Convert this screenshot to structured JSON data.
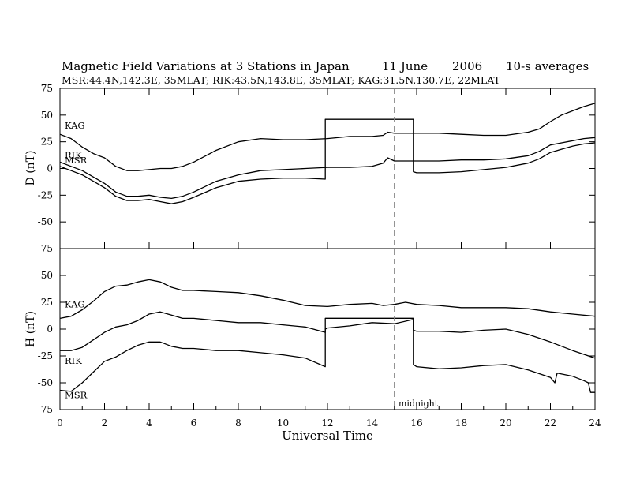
{
  "title": {
    "main": "Magnetic Field Variations at 3 Stations in Japan",
    "date": "11 June",
    "year": "2006",
    "averaging": "10-s averages"
  },
  "subtitle": "MSR:44.4N,142.3E, 35MLAT;   RIK:43.5N,143.8E, 35MLAT;   KAG:31.5N,130.7E, 22MLAT",
  "chart_data": {
    "type": "line",
    "title": "Magnetic Field Variations at 3 Stations in Japan",
    "xlabel": "Universal Time",
    "xlim": [
      0,
      24
    ],
    "xticks": [
      "0",
      "2",
      "4",
      "6",
      "8",
      "10",
      "12",
      "14",
      "16",
      "18",
      "20",
      "22",
      "24"
    ],
    "grid": false,
    "legend": "none (series labelled inline)",
    "annotations": [
      {
        "text": "midnight",
        "x": 15,
        "style": "dashed vertical line"
      }
    ],
    "panels": [
      {
        "ylabel": "D (nT)",
        "ylim": [
          -75,
          75
        ],
        "yticks": [
          "75",
          "50",
          "25",
          "0",
          "-25",
          "-50",
          "-75"
        ],
        "series": [
          {
            "name": "KAG",
            "x": [
              0,
              0.5,
              1,
              1.5,
              2,
              2.5,
              3,
              3.5,
              4,
              4.5,
              5,
              5.5,
              6,
              7,
              8,
              9,
              10,
              11,
              12,
              13,
              14,
              14.5,
              14.7,
              15,
              16,
              17,
              18,
              19,
              20,
              21,
              21.5,
              22,
              22.5,
              23,
              23.5,
              24
            ],
            "y": [
              32,
              28,
              20,
              14,
              10,
              2,
              -2,
              -2,
              -1,
              0,
              0,
              2,
              6,
              17,
              25,
              28,
              27,
              27,
              28,
              30,
              30,
              31,
              34,
              33,
              33,
              33,
              32,
              31,
              31,
              34,
              37,
              44,
              50,
              54,
              58,
              61
            ]
          },
          {
            "name": "RIK",
            "x": [
              0,
              0.5,
              1,
              1.5,
              2,
              2.5,
              3,
              3.5,
              4,
              4.5,
              5,
              5.5,
              6,
              7,
              8,
              9,
              10,
              11,
              12,
              13,
              14,
              14.5,
              14.7,
              15,
              16,
              17,
              18,
              19,
              20,
              21,
              21.5,
              22,
              22.5,
              23,
              23.5,
              24
            ],
            "y": [
              6,
              2,
              -2,
              -8,
              -14,
              -22,
              -26,
              -26,
              -25,
              -27,
              -28,
              -26,
              -22,
              -12,
              -6,
              -2,
              -1,
              0,
              1,
              1,
              2,
              5,
              10,
              7,
              7,
              7,
              8,
              8,
              9,
              12,
              16,
              22,
              24,
              26,
              28,
              29
            ]
          },
          {
            "name": "MSR",
            "x": [
              0,
              0.5,
              1,
              1.5,
              2,
              2.5,
              3,
              3.5,
              4,
              4.5,
              5,
              5.5,
              6,
              7,
              8,
              9,
              10,
              11,
              11.9,
              11.9,
              15.85,
              15.85,
              16,
              17,
              18,
              19,
              20,
              21,
              21.5,
              22,
              22.5,
              23,
              23.5,
              24
            ],
            "y": [
              2,
              -2,
              -6,
              -12,
              -18,
              -26,
              -30,
              -30,
              -29,
              -31,
              -33,
              -31,
              -27,
              -18,
              -12,
              -10,
              -9,
              -9,
              -10,
              46,
              46,
              -3,
              -4,
              -4,
              -3,
              -1,
              1,
              5,
              9,
              15,
              18,
              21,
              23,
              24
            ]
          }
        ]
      },
      {
        "ylabel": "H (nT)",
        "ylim": [
          -75,
          75
        ],
        "yticks": [
          "75",
          "50",
          "25",
          "0",
          "-25",
          "-50",
          "-75"
        ],
        "series": [
          {
            "name": "KAG",
            "x": [
              0,
              0.5,
              1,
              1.5,
              2,
              2.5,
              3,
              3.5,
              4,
              4.5,
              5,
              5.5,
              6,
              7,
              8,
              9,
              10,
              11,
              12,
              13,
              14,
              14.5,
              15,
              15.5,
              16,
              17,
              18,
              19,
              20,
              21,
              22,
              23,
              24
            ],
            "y": [
              10,
              12,
              18,
              26,
              35,
              40,
              41,
              44,
              46,
              44,
              39,
              36,
              36,
              35,
              34,
              31,
              27,
              22,
              21,
              23,
              24,
              22,
              23,
              25,
              23,
              22,
              20,
              20,
              20,
              19,
              16,
              14,
              12
            ]
          },
          {
            "name": "RIK",
            "x": [
              0,
              0.5,
              1,
              1.5,
              2,
              2.5,
              3,
              3.5,
              4,
              4.5,
              5,
              5.5,
              6,
              7,
              8,
              9,
              10,
              11,
              11.9,
              11.9,
              15.85,
              15.85,
              16,
              17,
              18,
              19,
              20,
              21,
              22,
              23,
              24
            ],
            "y": [
              -20,
              -20,
              -17,
              -10,
              -3,
              2,
              4,
              8,
              14,
              16,
              13,
              10,
              10,
              8,
              6,
              6,
              4,
              2,
              -3,
              10,
              10,
              -1,
              -2,
              -2,
              -3,
              -1,
              0,
              -5,
              -12,
              -20,
              -27
            ]
          },
          {
            "name": "MSR",
            "x": [
              0,
              0.5,
              1,
              1.5,
              2,
              2.5,
              3,
              3.5,
              4,
              4.5,
              5,
              5.5,
              6,
              7,
              8,
              9,
              10,
              11,
              11.9,
              11.9,
              12,
              13,
              14,
              15,
              15.85,
              15.85,
              16,
              17,
              18,
              19,
              20,
              21,
              22,
              22.2,
              22.3,
              23,
              23.5,
              23.7,
              23.8,
              24
            ],
            "y": [
              -57,
              -58,
              -50,
              -40,
              -30,
              -26,
              -20,
              -15,
              -12,
              -12,
              -16,
              -18,
              -18,
              -20,
              -20,
              -22,
              -24,
              -27,
              -35,
              0,
              1,
              3,
              6,
              5,
              9,
              -33,
              -35,
              -37,
              -36,
              -34,
              -33,
              -38,
              -45,
              -50,
              -41,
              -44,
              -48,
              -50,
              -59,
              -59
            ]
          }
        ]
      }
    ],
    "data_gap_box": {
      "x": [
        11.9,
        15.85
      ],
      "D_level": 46,
      "H_level": 10
    }
  }
}
